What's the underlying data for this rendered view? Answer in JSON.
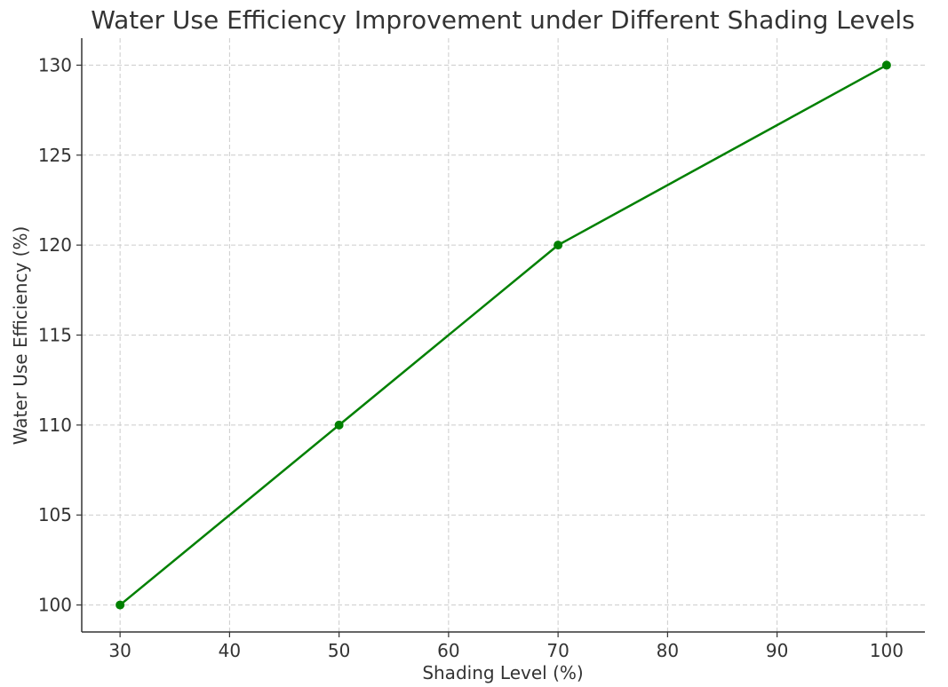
{
  "chart_data": {
    "type": "line",
    "title": "Water Use Efficiency Improvement under Different Shading Levels",
    "xlabel": "Shading Level (%)",
    "ylabel": "Water Use Efficiency (%)",
    "x": [
      30,
      50,
      70,
      100
    ],
    "series": [
      {
        "values": [
          100,
          110,
          120,
          130
        ],
        "color": "#008000",
        "marker": "circle"
      }
    ],
    "xticks": [
      30,
      40,
      50,
      60,
      70,
      80,
      90,
      100
    ],
    "yticks": [
      100,
      105,
      110,
      115,
      120,
      125,
      130
    ],
    "xlim": [
      26.5,
      103.5
    ],
    "ylim": [
      98.5,
      131.5
    ],
    "grid": true,
    "legend": "none"
  }
}
